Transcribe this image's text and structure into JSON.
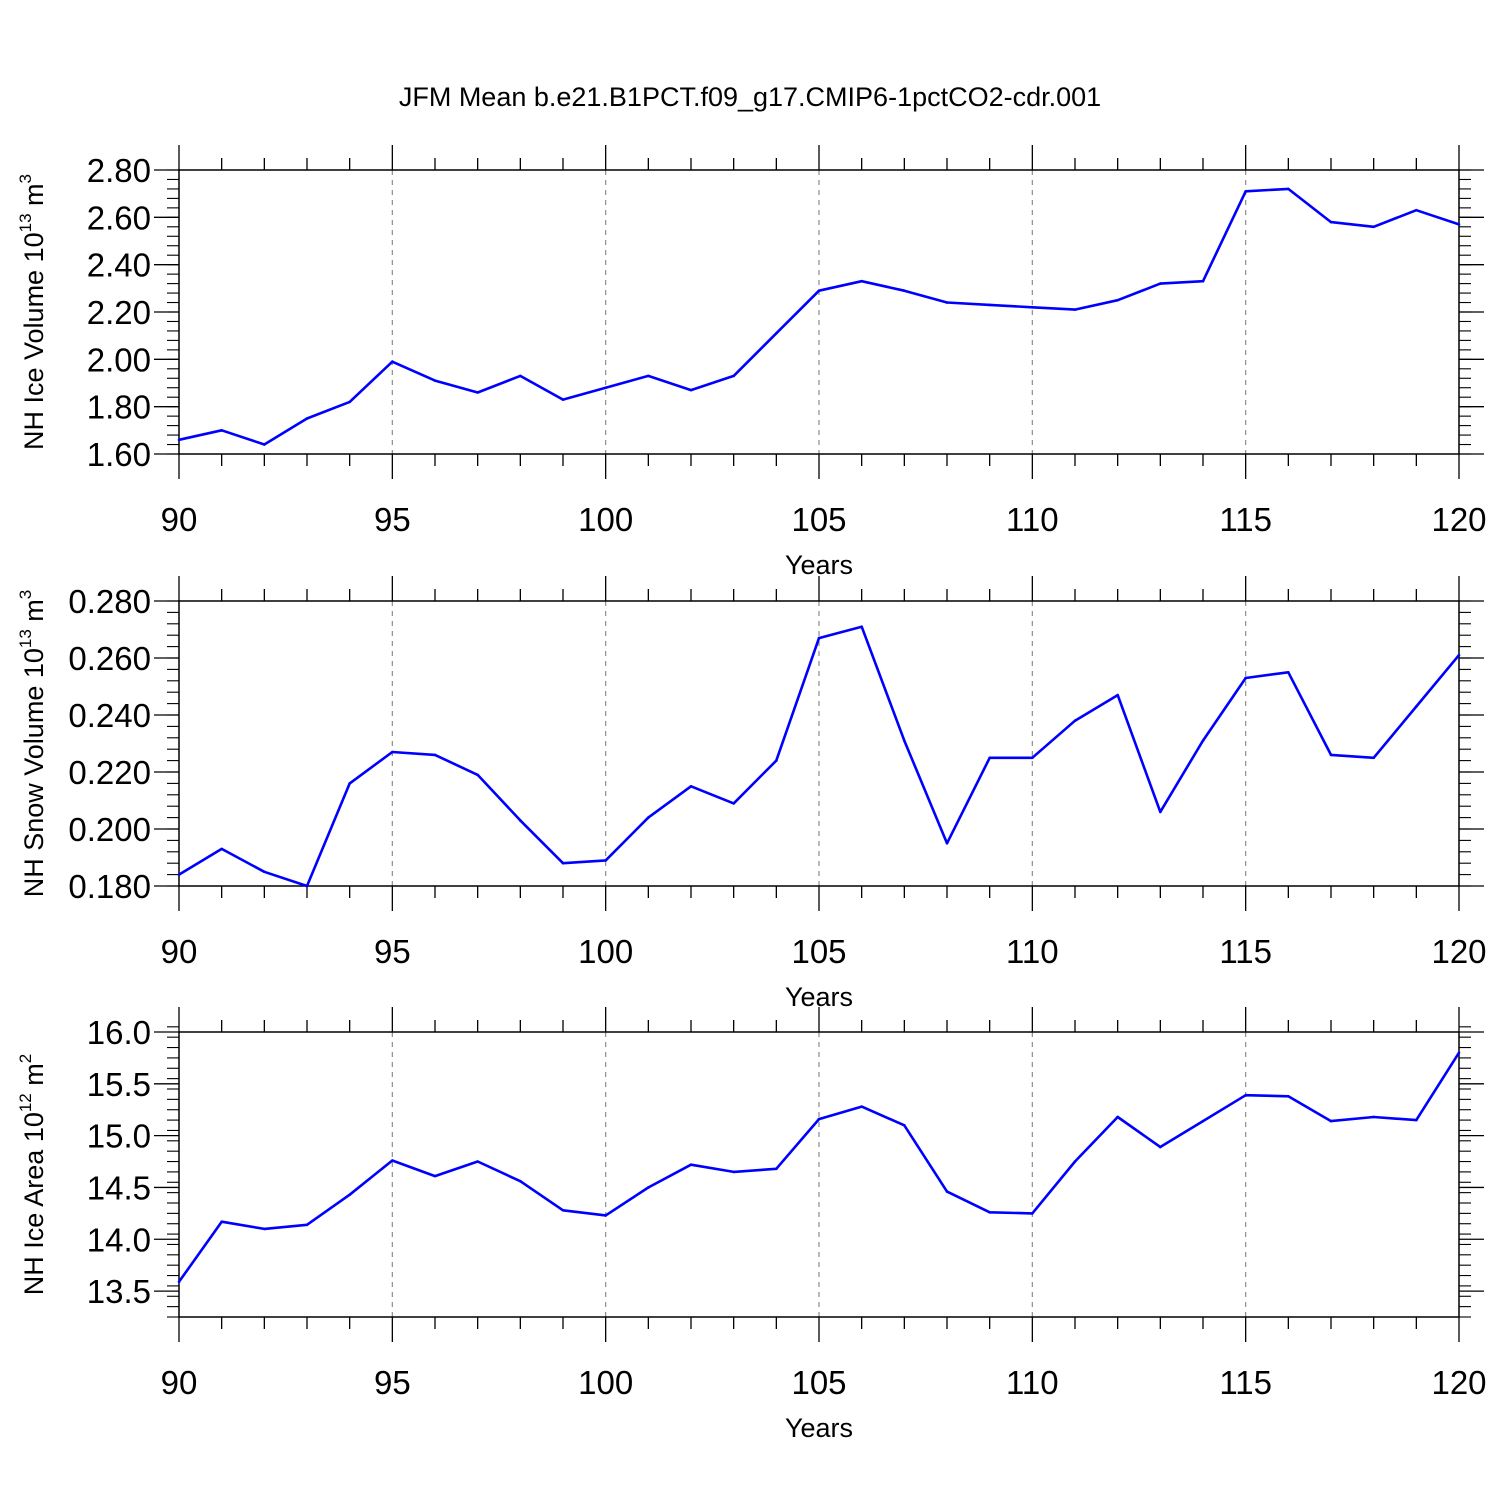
{
  "title": "JFM Mean b.e21.B1PCT.f09_g17.CMIP6-1pctCO2-cdr.001",
  "colors": {
    "line": "#0000ff",
    "frame": "#000000",
    "grid": "#8c8c8c",
    "background": "#ffffff"
  },
  "chart_data": [
    {
      "type": "line",
      "name": "ice-volume",
      "title": "JFM Mean b.e21.B1PCT.f09_g17.CMIP6-1pctCO2-cdr.001",
      "xlabel": "Years",
      "ylabel_text": "NH Ice Volume 10",
      "ylabel_sup1": "13",
      "ylabel_mid": " m",
      "ylabel_sup2": "3",
      "xlim": [
        90,
        120
      ],
      "ylim": [
        1.6,
        2.8
      ],
      "xticks": [
        90,
        95,
        100,
        105,
        110,
        115,
        120
      ],
      "xtick_labels": [
        "90",
        "95",
        "100",
        "105",
        "110",
        "115",
        "120"
      ],
      "yticks": [
        1.6,
        1.8,
        2.0,
        2.2,
        2.4,
        2.6,
        2.8
      ],
      "ytick_labels": [
        "1.60",
        "1.80",
        "2.00",
        "2.20",
        "2.40",
        "2.60",
        "2.80"
      ],
      "grid": "vertical dashed at major x ticks",
      "x": [
        90,
        91,
        92,
        93,
        94,
        95,
        96,
        97,
        98,
        99,
        100,
        101,
        102,
        103,
        104,
        105,
        106,
        107,
        108,
        109,
        110,
        111,
        112,
        113,
        114,
        115,
        116,
        117,
        118,
        119,
        120
      ],
      "values": [
        1.66,
        1.7,
        1.64,
        1.75,
        1.82,
        1.99,
        1.91,
        1.86,
        1.93,
        1.83,
        1.88,
        1.93,
        1.87,
        1.93,
        2.11,
        2.29,
        2.33,
        2.29,
        2.24,
        2.23,
        2.22,
        2.21,
        2.25,
        2.32,
        2.33,
        2.71,
        2.72,
        2.58,
        2.56,
        2.63,
        2.57
      ]
    },
    {
      "type": "line",
      "name": "snow-volume",
      "xlabel": "Years",
      "ylabel_text": "NH Snow Volume 10",
      "ylabel_sup1": "13",
      "ylabel_mid": " m",
      "ylabel_sup2": "3",
      "xlim": [
        90,
        120
      ],
      "ylim": [
        0.18,
        0.28
      ],
      "xticks": [
        90,
        95,
        100,
        105,
        110,
        115,
        120
      ],
      "xtick_labels": [
        "90",
        "95",
        "100",
        "105",
        "110",
        "115",
        "120"
      ],
      "yticks": [
        0.18,
        0.2,
        0.22,
        0.24,
        0.26,
        0.28
      ],
      "ytick_labels": [
        "0.180",
        "0.200",
        "0.220",
        "0.240",
        "0.260",
        "0.280"
      ],
      "grid": "vertical dashed at major x ticks",
      "x": [
        90,
        91,
        92,
        93,
        94,
        95,
        96,
        97,
        98,
        99,
        100,
        101,
        102,
        103,
        104,
        105,
        106,
        107,
        108,
        109,
        110,
        111,
        112,
        113,
        114,
        115,
        116,
        117,
        118,
        119,
        120
      ],
      "values": [
        0.184,
        0.193,
        0.185,
        0.18,
        0.216,
        0.227,
        0.226,
        0.219,
        0.203,
        0.188,
        0.189,
        0.204,
        0.215,
        0.209,
        0.224,
        0.267,
        0.271,
        0.231,
        0.195,
        0.225,
        0.225,
        0.238,
        0.247,
        0.206,
        0.231,
        0.253,
        0.255,
        0.226,
        0.225,
        0.243,
        0.261
      ]
    },
    {
      "type": "line",
      "name": "ice-area",
      "xlabel": "Years",
      "ylabel_text": "NH Ice Area 10",
      "ylabel_sup1": "12",
      "ylabel_mid": " m",
      "ylabel_sup2": "2",
      "xlim": [
        90,
        120
      ],
      "ylim": [
        13.25,
        16.0
      ],
      "xticks": [
        90,
        95,
        100,
        105,
        110,
        115,
        120
      ],
      "xtick_labels": [
        "90",
        "95",
        "100",
        "105",
        "110",
        "115",
        "120"
      ],
      "yticks": [
        13.5,
        14.0,
        14.5,
        15.0,
        15.5,
        16.0
      ],
      "ytick_labels": [
        "13.5",
        "14.0",
        "14.5",
        "15.0",
        "15.5",
        "16.0"
      ],
      "grid": "vertical dashed at major x ticks",
      "x": [
        90,
        91,
        92,
        93,
        94,
        95,
        96,
        97,
        98,
        99,
        100,
        101,
        102,
        103,
        104,
        105,
        106,
        107,
        108,
        109,
        110,
        111,
        112,
        113,
        114,
        115,
        116,
        117,
        118,
        119,
        120
      ],
      "values": [
        13.59,
        14.17,
        14.1,
        14.14,
        14.43,
        14.76,
        14.61,
        14.75,
        14.56,
        14.28,
        14.23,
        14.5,
        14.72,
        14.65,
        14.68,
        15.16,
        15.28,
        15.1,
        14.46,
        14.26,
        14.25,
        14.75,
        15.18,
        14.89,
        15.14,
        15.39,
        15.38,
        15.14,
        15.18,
        15.15,
        15.8
      ]
    }
  ]
}
